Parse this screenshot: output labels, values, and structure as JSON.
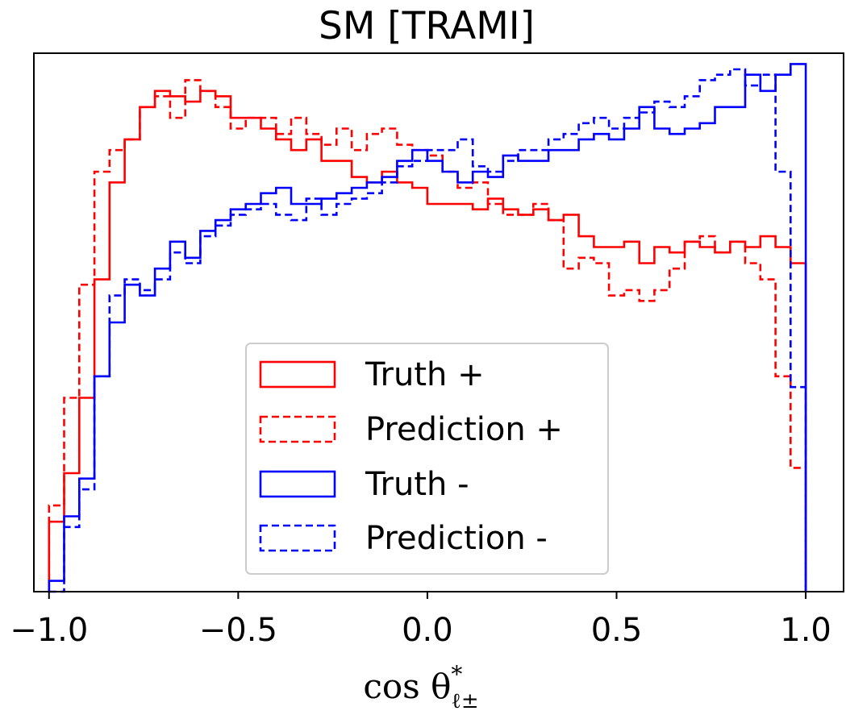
{
  "chart_data": {
    "type": "line",
    "title": "SM [TRAMI]",
    "xlabel": "cos θ*ℓ±",
    "xlabel_parts": {
      "main": "cos θ",
      "sup": "*",
      "sub": "ℓ±"
    },
    "ylabel": "",
    "xlim": [
      -1.04,
      1.1
    ],
    "ylim": [
      0,
      1.0
    ],
    "xticks": [
      -1.0,
      -0.5,
      0.0,
      0.5,
      1.0
    ],
    "xtick_labels": [
      "−1.0",
      "−0.5",
      "0.0",
      "0.5",
      "1.0"
    ],
    "yticks_visible": false,
    "grid": false,
    "legend_position": "lower-center",
    "bin_edges": [
      -1.0,
      -0.96,
      -0.92,
      -0.88,
      -0.84,
      -0.8,
      -0.76,
      -0.72,
      -0.68,
      -0.64,
      -0.6,
      -0.56,
      -0.52,
      -0.48,
      -0.44,
      -0.4,
      -0.36,
      -0.32,
      -0.28,
      -0.24,
      -0.2,
      -0.16,
      -0.12,
      -0.08,
      -0.04,
      0.0,
      0.04,
      0.08,
      0.12,
      0.16,
      0.2,
      0.24,
      0.28,
      0.32,
      0.36,
      0.4,
      0.44,
      0.48,
      0.52,
      0.56,
      0.6,
      0.64,
      0.68,
      0.72,
      0.76,
      0.8,
      0.84,
      0.88,
      0.92,
      0.96,
      1.0
    ],
    "series": [
      {
        "name": "Truth +",
        "color": "#ff0000",
        "linestyle": "solid",
        "values": [
          0.13,
          0.22,
          0.36,
          0.58,
          0.76,
          0.84,
          0.9,
          0.93,
          0.92,
          0.91,
          0.93,
          0.92,
          0.88,
          0.88,
          0.86,
          0.84,
          0.82,
          0.84,
          0.8,
          0.8,
          0.77,
          0.76,
          0.78,
          0.76,
          0.75,
          0.72,
          0.72,
          0.72,
          0.71,
          0.73,
          0.71,
          0.7,
          0.71,
          0.69,
          0.7,
          0.66,
          0.64,
          0.64,
          0.65,
          0.61,
          0.64,
          0.63,
          0.65,
          0.64,
          0.63,
          0.65,
          0.64,
          0.66,
          0.64,
          0.61
        ]
      },
      {
        "name": "Prediction +",
        "color": "#ff0000",
        "linestyle": "dashed",
        "values": [
          0.16,
          0.36,
          0.57,
          0.78,
          0.82,
          0.84,
          0.9,
          0.92,
          0.88,
          0.95,
          0.93,
          0.9,
          0.86,
          0.88,
          0.88,
          0.85,
          0.88,
          0.85,
          0.83,
          0.86,
          0.82,
          0.85,
          0.86,
          0.83,
          0.82,
          0.81,
          0.78,
          0.75,
          0.76,
          0.72,
          0.7,
          0.7,
          0.72,
          0.69,
          0.6,
          0.62,
          0.61,
          0.55,
          0.56,
          0.54,
          0.56,
          0.6,
          0.65,
          0.66,
          0.63,
          0.65,
          0.61,
          0.58,
          0.4,
          0.23
        ]
      },
      {
        "name": "Truth -",
        "color": "#0000ff",
        "linestyle": "solid",
        "values": [
          0.02,
          0.14,
          0.21,
          0.4,
          0.5,
          0.57,
          0.55,
          0.6,
          0.65,
          0.62,
          0.67,
          0.69,
          0.71,
          0.72,
          0.74,
          0.75,
          0.72,
          0.72,
          0.73,
          0.74,
          0.75,
          0.76,
          0.77,
          0.8,
          0.82,
          0.8,
          0.78,
          0.76,
          0.78,
          0.77,
          0.81,
          0.8,
          0.8,
          0.82,
          0.82,
          0.84,
          0.85,
          0.84,
          0.86,
          0.9,
          0.86,
          0.85,
          0.86,
          0.87,
          0.9,
          0.9,
          0.96,
          0.93,
          0.96,
          0.98
        ]
      },
      {
        "name": "Prediction -",
        "color": "#0000ff",
        "linestyle": "dashed",
        "values": [
          0.0,
          0.12,
          0.19,
          0.4,
          0.55,
          0.58,
          0.56,
          0.58,
          0.63,
          0.61,
          0.66,
          0.68,
          0.7,
          0.71,
          0.72,
          0.7,
          0.69,
          0.73,
          0.7,
          0.72,
          0.73,
          0.74,
          0.76,
          0.79,
          0.8,
          0.82,
          0.82,
          0.84,
          0.79,
          0.78,
          0.8,
          0.82,
          0.82,
          0.84,
          0.85,
          0.87,
          0.88,
          0.86,
          0.88,
          0.89,
          0.91,
          0.9,
          0.92,
          0.95,
          0.96,
          0.97,
          0.94,
          0.96,
          0.78,
          0.38
        ]
      }
    ]
  }
}
